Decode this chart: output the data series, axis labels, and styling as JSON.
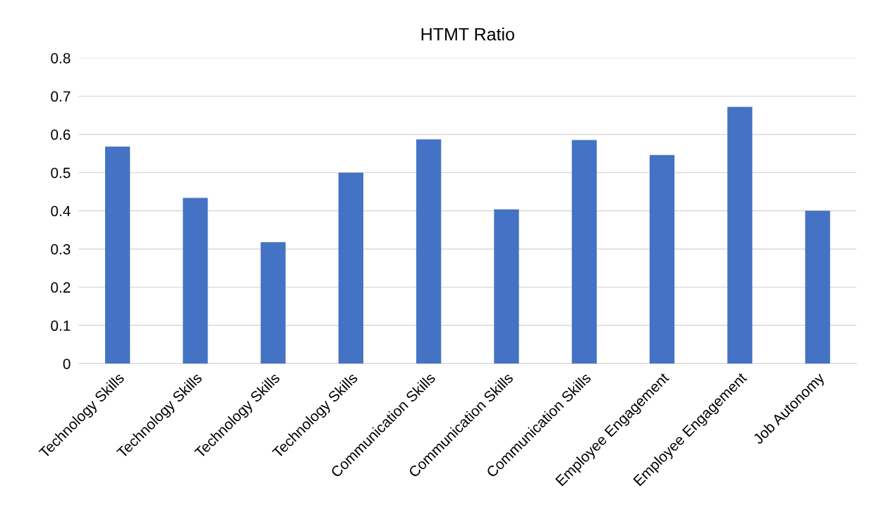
{
  "chart_data": {
    "type": "bar",
    "title": "HTMT Ratio",
    "categories": [
      "Technology Skills",
      "Technology Skills",
      "Technology Skills",
      "Technology Skills",
      "Communication Skills",
      "Communication Skills",
      "Communication Skills",
      "Employee Engagement",
      "Employee Engagement",
      "Job Autonomy"
    ],
    "values": [
      0.568,
      0.434,
      0.318,
      0.5,
      0.587,
      0.404,
      0.585,
      0.546,
      0.672,
      0.4
    ],
    "color": "#4472c4",
    "ylim": [
      0,
      0.8
    ],
    "yticks": [
      {
        "value": 0,
        "label": "0"
      },
      0.1,
      0.2,
      0.3,
      0.4,
      0.5,
      0.6,
      0.7,
      0.8
    ],
    "grid": "y"
  }
}
